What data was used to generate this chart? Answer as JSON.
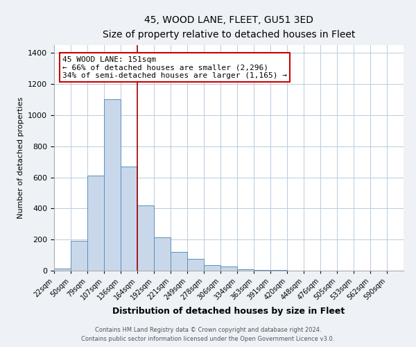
{
  "title": "45, WOOD LANE, FLEET, GU51 3ED",
  "subtitle": "Size of property relative to detached houses in Fleet",
  "xlabel": "Distribution of detached houses by size in Fleet",
  "ylabel": "Number of detached properties",
  "bar_labels": [
    "22sqm",
    "50sqm",
    "79sqm",
    "107sqm",
    "136sqm",
    "164sqm",
    "192sqm",
    "221sqm",
    "249sqm",
    "278sqm",
    "306sqm",
    "334sqm",
    "363sqm",
    "391sqm",
    "420sqm",
    "448sqm",
    "476sqm",
    "505sqm",
    "533sqm",
    "562sqm",
    "590sqm"
  ],
  "bar_values": [
    15,
    190,
    610,
    1100,
    670,
    420,
    215,
    120,
    75,
    35,
    27,
    10,
    5,
    3,
    1,
    0,
    0,
    0,
    0,
    0,
    0
  ],
  "bar_color": "#c8d8ea",
  "bar_edge_color": "#5a8fc0",
  "vline_color": "#aa0000",
  "annotation_text": "45 WOOD LANE: 151sqm\n← 66% of detached houses are smaller (2,296)\n34% of semi-detached houses are larger (1,165) →",
  "annotation_box_edge": "#cc0000",
  "ylim": [
    0,
    1450
  ],
  "yticks": [
    0,
    200,
    400,
    600,
    800,
    1000,
    1200,
    1400
  ],
  "footer1": "Contains HM Land Registry data © Crown copyright and database right 2024.",
  "footer2": "Contains public sector information licensed under the Open Government Licence v3.0.",
  "bg_color": "#eef2f7",
  "plot_bg_color": "#ffffff",
  "grid_color": "#b8ccdc"
}
